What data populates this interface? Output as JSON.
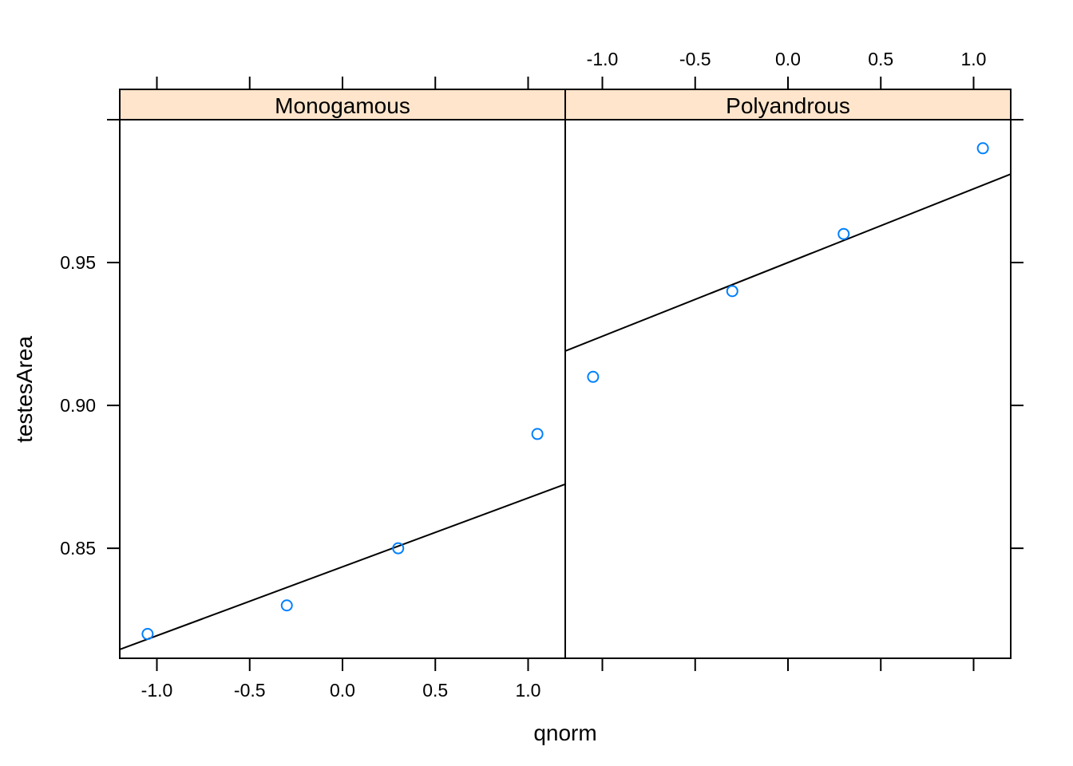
{
  "chart_data": {
    "type": "scatter",
    "xlabel": "qnorm",
    "ylabel": "testesArea",
    "xlim": [
      -1.2,
      1.2
    ],
    "ylim": [
      0.8115,
      1.0
    ],
    "x_ticks": [
      -1.0,
      -0.5,
      0.0,
      0.5,
      1.0
    ],
    "x_tick_labels": [
      "-1.0",
      "-0.5",
      "0.0",
      "0.5",
      "1.0"
    ],
    "y_ticks": [
      0.85,
      0.9,
      0.95
    ],
    "y_tick_labels": [
      "0.85",
      "0.90",
      "0.95"
    ],
    "grid": false,
    "point_color": "#0080ff",
    "strip_color": "#ffe5cc",
    "panels": [
      {
        "name": "Monogamous",
        "points": [
          {
            "x": -1.05,
            "y": 0.82
          },
          {
            "x": -0.3,
            "y": 0.83
          },
          {
            "x": 0.3,
            "y": 0.85
          },
          {
            "x": 1.05,
            "y": 0.89
          }
        ],
        "line": {
          "intercept": 0.8435,
          "slope": 0.0241
        }
      },
      {
        "name": "Polyandrous",
        "points": [
          {
            "x": -1.05,
            "y": 0.91
          },
          {
            "x": -0.3,
            "y": 0.94
          },
          {
            "x": 0.3,
            "y": 0.96
          },
          {
            "x": 1.05,
            "y": 0.99
          }
        ],
        "line": {
          "intercept": 0.95,
          "slope": 0.0258
        }
      }
    ]
  }
}
